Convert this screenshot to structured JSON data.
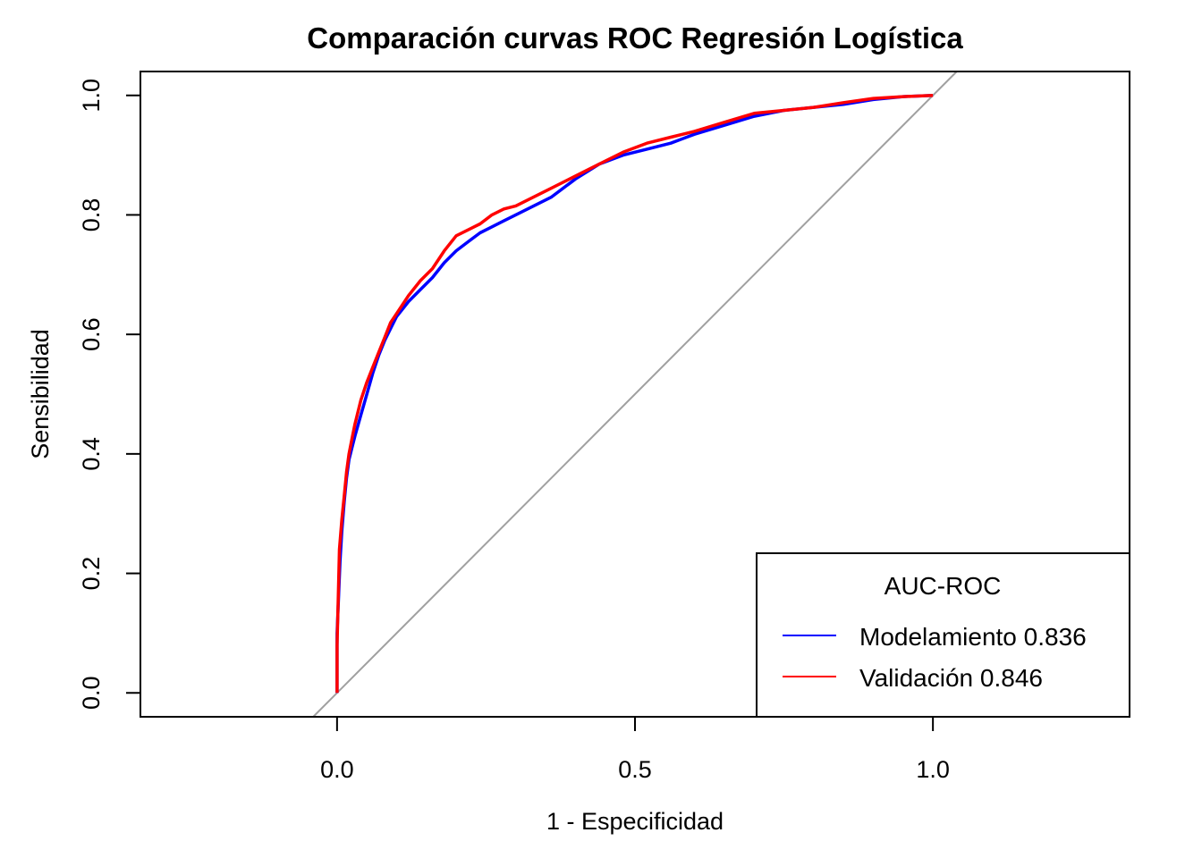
{
  "chart_data": {
    "type": "line",
    "title": "Comparación curvas ROC Regresión Logística",
    "xlabel": "1 - Especificidad",
    "ylabel": "Sensibilidad",
    "xlim": [
      -0.33,
      1.33
    ],
    "ylim": [
      -0.04,
      1.04
    ],
    "x_ticks": [
      0.0,
      0.5,
      1.0
    ],
    "x_tick_labels": [
      "0.0",
      "0.5",
      "1.0"
    ],
    "y_ticks": [
      0.0,
      0.2,
      0.4,
      0.6,
      0.8,
      1.0
    ],
    "y_tick_labels": [
      "0.0",
      "0.2",
      "0.4",
      "0.6",
      "0.8",
      "1.0"
    ],
    "grid": false,
    "reference_line": {
      "slope": 1,
      "intercept": 0,
      "color": "#a0a0a0"
    },
    "legend": {
      "title": "AUC-ROC",
      "position": "bottom-right",
      "entries": [
        {
          "label": "Modelamiento 0.836",
          "color": "#0000ff"
        },
        {
          "label": "Validación 0.846",
          "color": "#ff0000"
        }
      ]
    },
    "series": [
      {
        "name": "Modelamiento 0.836",
        "color": "#0000ff",
        "x": [
          0.0,
          0.0,
          0.005,
          0.008,
          0.012,
          0.016,
          0.02,
          0.025,
          0.03,
          0.04,
          0.05,
          0.06,
          0.07,
          0.08,
          0.09,
          0.1,
          0.12,
          0.14,
          0.16,
          0.18,
          0.2,
          0.22,
          0.24,
          0.26,
          0.28,
          0.3,
          0.33,
          0.36,
          0.4,
          0.44,
          0.48,
          0.52,
          0.56,
          0.6,
          0.65,
          0.7,
          0.75,
          0.8,
          0.85,
          0.9,
          0.95,
          1.0
        ],
        "y": [
          0.0,
          0.1,
          0.22,
          0.27,
          0.32,
          0.36,
          0.39,
          0.41,
          0.43,
          0.465,
          0.5,
          0.535,
          0.565,
          0.59,
          0.61,
          0.63,
          0.655,
          0.675,
          0.695,
          0.72,
          0.74,
          0.755,
          0.77,
          0.78,
          0.79,
          0.8,
          0.815,
          0.83,
          0.86,
          0.885,
          0.9,
          0.91,
          0.92,
          0.935,
          0.95,
          0.965,
          0.975,
          0.98,
          0.985,
          0.993,
          0.998,
          1.0
        ]
      },
      {
        "name": "Validación 0.846",
        "color": "#ff0000",
        "x": [
          0.0,
          0.0,
          0.004,
          0.008,
          0.012,
          0.016,
          0.02,
          0.025,
          0.03,
          0.04,
          0.05,
          0.06,
          0.07,
          0.08,
          0.09,
          0.1,
          0.12,
          0.14,
          0.16,
          0.18,
          0.2,
          0.22,
          0.24,
          0.26,
          0.28,
          0.3,
          0.33,
          0.36,
          0.4,
          0.44,
          0.48,
          0.52,
          0.56,
          0.6,
          0.65,
          0.7,
          0.75,
          0.8,
          0.85,
          0.9,
          0.95,
          1.0
        ],
        "y": [
          0.0,
          0.08,
          0.24,
          0.29,
          0.33,
          0.37,
          0.4,
          0.425,
          0.45,
          0.49,
          0.52,
          0.545,
          0.57,
          0.595,
          0.62,
          0.635,
          0.665,
          0.69,
          0.71,
          0.74,
          0.765,
          0.775,
          0.785,
          0.8,
          0.81,
          0.815,
          0.83,
          0.845,
          0.865,
          0.885,
          0.905,
          0.92,
          0.93,
          0.94,
          0.955,
          0.97,
          0.975,
          0.98,
          0.988,
          0.995,
          0.998,
          1.0
        ]
      }
    ]
  }
}
